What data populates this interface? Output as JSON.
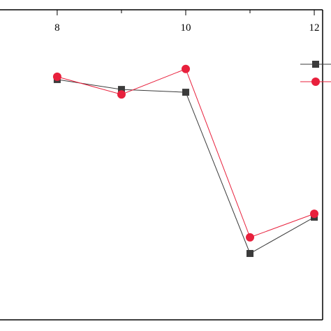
{
  "chart_data": {
    "type": "line",
    "x": [
      8,
      9,
      10,
      11,
      12
    ],
    "series": [
      {
        "color": "#3b3b3b",
        "marker": "square",
        "values": [
          77.5,
          74.3,
          73.4,
          21.4,
          33.1
        ]
      },
      {
        "color": "#e8203c",
        "marker": "circle",
        "values": [
          78.4,
          72.7,
          80.9,
          26.6,
          34.2
        ]
      }
    ],
    "xlim": [
      7.11,
      12.13
    ],
    "xticks": [
      8,
      10,
      12
    ],
    "xminorticks": [
      9,
      11
    ],
    "ylim": [
      0,
      100
    ],
    "legend": "top-right"
  }
}
